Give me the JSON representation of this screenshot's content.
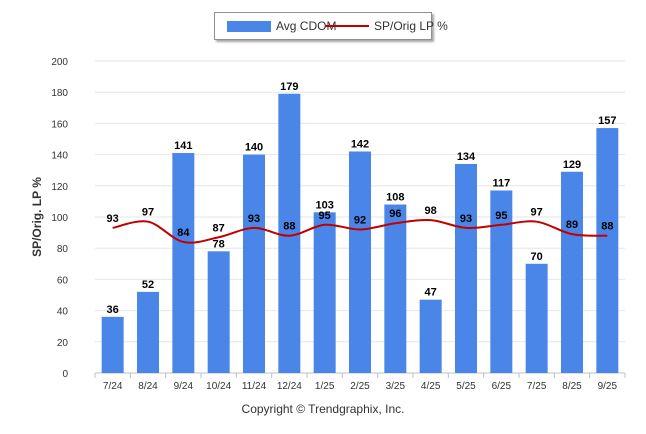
{
  "chart_data": {
    "type": "bar",
    "title": "",
    "ylabel": "SP/Orig. LP %",
    "xlabel": "",
    "ylim": [
      0,
      200
    ],
    "yticks": [
      0,
      20,
      40,
      60,
      80,
      100,
      120,
      140,
      160,
      180,
      200
    ],
    "categories": [
      "7/24",
      "8/24",
      "9/24",
      "10/24",
      "11/24",
      "12/24",
      "1/25",
      "2/25",
      "3/25",
      "4/25",
      "5/25",
      "6/25",
      "7/25",
      "8/25",
      "9/25"
    ],
    "series": [
      {
        "name": "Avg CDOM",
        "type": "bar",
        "color": "#4a86e8",
        "values": [
          36,
          52,
          141,
          78,
          140,
          179,
          103,
          142,
          108,
          47,
          134,
          117,
          70,
          129,
          157
        ]
      },
      {
        "name": "SP/Orig LP %",
        "type": "line",
        "color": "#c00000",
        "values": [
          93,
          97,
          84,
          87,
          93,
          88,
          95,
          92,
          96,
          98,
          93,
          95,
          97,
          89,
          88
        ]
      }
    ],
    "legend_position": "top-center",
    "grid": true
  },
  "legend": {
    "bar_label": "Avg CDOM",
    "line_label": "SP/Orig LP %"
  },
  "footer": {
    "copyright": "Copyright © Trendgraphix, Inc."
  }
}
